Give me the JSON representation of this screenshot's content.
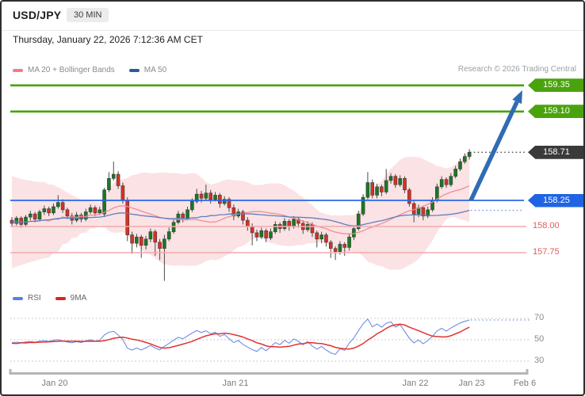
{
  "header": {
    "symbol": "USD/JPY",
    "timeframe": "30 MIN"
  },
  "datetime": "Thursday, January 22, 2026 7:12:36 AM CET",
  "copyright": "Research © 2026 Trading Central",
  "legend_main": [
    {
      "label": "MA 20 + Bollinger Bands",
      "color": "#f47b83"
    },
    {
      "label": "MA 50",
      "color": "#2b5aa0"
    }
  ],
  "legend_rsi": [
    {
      "label": "RSI",
      "color": "#5b7fe0"
    },
    {
      "label": "9MA",
      "color": "#e02020"
    }
  ],
  "chart_data": {
    "type": "candlestick",
    "title": "USD/JPY 30 MIN",
    "price_range_visible": [
      157.45,
      159.45
    ],
    "x_ticks": [
      "Jan 20",
      "Jan 21",
      "Jan 22",
      "Jan 23",
      "Feb 6"
    ],
    "rsi_ticks": [
      70,
      50,
      30
    ],
    "indicators": {
      "overlays": [
        "MA 20 + Bollinger Bands",
        "MA 50"
      ],
      "oscillators": [
        "RSI",
        "9MA"
      ]
    },
    "price_levels": [
      {
        "label": "159.35",
        "price": 159.35,
        "kind": "resistance",
        "style": "green-tag"
      },
      {
        "label": "159.10",
        "price": 159.1,
        "kind": "resistance",
        "style": "green-tag"
      },
      {
        "label": "158.71",
        "price": 158.71,
        "kind": "last-price",
        "style": "dark-tag"
      },
      {
        "label": "158.25",
        "price": 158.25,
        "kind": "pivot",
        "style": "blue-tag"
      },
      {
        "label": "158.00",
        "price": 158.0,
        "kind": "support",
        "style": "red-text"
      },
      {
        "label": "157.75",
        "price": 157.75,
        "kind": "support",
        "style": "red-text"
      }
    ],
    "forecast_arrow": {
      "direction": "up",
      "from_price": 158.71,
      "to_price": 159.35
    },
    "warmup_closes": [
      158.3,
      157.75,
      158.35,
      157.7,
      158.3,
      157.8,
      158.25,
      157.85,
      158.2,
      157.9,
      158.15,
      157.95
    ],
    "candles": [
      [
        158.06,
        158.09,
        158.0,
        158.03
      ],
      [
        158.03,
        158.1,
        158.01,
        158.08
      ],
      [
        158.08,
        158.1,
        157.99,
        158.02
      ],
      [
        158.02,
        158.11,
        158.0,
        158.09
      ],
      [
        158.09,
        158.15,
        158.06,
        158.12
      ],
      [
        158.12,
        158.14,
        158.04,
        158.07
      ],
      [
        158.07,
        158.16,
        158.05,
        158.14
      ],
      [
        158.14,
        158.2,
        158.11,
        158.17
      ],
      [
        158.17,
        158.19,
        158.1,
        158.13
      ],
      [
        158.13,
        158.22,
        158.11,
        158.19
      ],
      [
        158.19,
        158.3,
        158.17,
        158.23
      ],
      [
        158.23,
        158.26,
        158.13,
        158.16
      ],
      [
        158.16,
        158.18,
        158.07,
        158.1
      ],
      [
        158.1,
        158.13,
        158.02,
        158.06
      ],
      [
        158.06,
        158.14,
        158.04,
        158.11
      ],
      [
        158.11,
        158.13,
        158.04,
        158.07
      ],
      [
        158.07,
        158.17,
        158.05,
        158.14
      ],
      [
        158.14,
        158.21,
        158.12,
        158.18
      ],
      [
        158.18,
        158.2,
        158.1,
        158.13
      ],
      [
        158.13,
        158.19,
        158.11,
        158.16
      ],
      [
        158.12,
        158.37,
        158.09,
        158.35
      ],
      [
        158.35,
        158.52,
        158.33,
        158.46
      ],
      [
        158.46,
        158.62,
        158.44,
        158.5
      ],
      [
        158.5,
        158.53,
        158.36,
        158.39
      ],
      [
        158.39,
        158.42,
        158.22,
        158.25
      ],
      [
        158.25,
        158.28,
        157.86,
        157.92
      ],
      [
        157.92,
        157.95,
        157.74,
        157.84
      ],
      [
        157.84,
        157.93,
        157.8,
        157.9
      ],
      [
        157.9,
        157.92,
        157.7,
        157.82
      ],
      [
        157.82,
        157.91,
        157.78,
        157.88
      ],
      [
        157.88,
        157.98,
        157.85,
        157.95
      ],
      [
        157.95,
        157.97,
        157.72,
        157.85
      ],
      [
        157.85,
        157.88,
        157.68,
        157.79
      ],
      [
        157.79,
        157.92,
        157.48,
        157.88
      ],
      [
        157.88,
        157.99,
        157.86,
        157.95
      ],
      [
        157.95,
        158.07,
        157.93,
        158.04
      ],
      [
        158.04,
        158.15,
        158.02,
        158.12
      ],
      [
        158.12,
        158.14,
        158.04,
        158.08
      ],
      [
        158.08,
        158.19,
        158.06,
        158.16
      ],
      [
        158.16,
        158.27,
        158.14,
        158.24
      ],
      [
        158.24,
        158.36,
        158.22,
        158.31
      ],
      [
        158.31,
        158.34,
        158.23,
        158.27
      ],
      [
        158.27,
        158.4,
        158.25,
        158.32
      ],
      [
        158.32,
        158.35,
        158.22,
        158.26
      ],
      [
        158.26,
        158.33,
        158.24,
        158.3
      ],
      [
        158.3,
        158.32,
        158.18,
        158.22
      ],
      [
        158.22,
        158.29,
        158.2,
        158.26
      ],
      [
        158.26,
        158.28,
        158.14,
        158.18
      ],
      [
        158.18,
        158.21,
        158.06,
        158.1
      ],
      [
        158.1,
        158.17,
        158.08,
        158.14
      ],
      [
        158.14,
        158.16,
        158.02,
        158.06
      ],
      [
        158.06,
        158.09,
        157.96,
        158.0
      ],
      [
        158.0,
        158.03,
        157.82,
        157.94
      ],
      [
        157.94,
        157.97,
        157.86,
        157.9
      ],
      [
        157.9,
        157.99,
        157.88,
        157.96
      ],
      [
        157.96,
        157.98,
        157.85,
        157.89
      ],
      [
        157.89,
        157.98,
        157.87,
        157.95
      ],
      [
        157.95,
        158.05,
        157.93,
        158.02
      ],
      [
        158.02,
        158.04,
        157.94,
        157.98
      ],
      [
        157.98,
        158.08,
        157.96,
        158.05
      ],
      [
        158.05,
        158.07,
        157.96,
        158.0
      ],
      [
        158.0,
        158.1,
        157.98,
        158.07
      ],
      [
        158.07,
        158.09,
        157.99,
        158.03
      ],
      [
        158.03,
        158.06,
        157.93,
        157.97
      ],
      [
        157.97,
        158.05,
        157.95,
        158.02
      ],
      [
        158.02,
        158.04,
        157.9,
        157.94
      ],
      [
        157.94,
        157.96,
        157.8,
        157.88
      ],
      [
        157.88,
        157.95,
        157.84,
        157.92
      ],
      [
        157.92,
        157.94,
        157.81,
        157.85
      ],
      [
        157.85,
        157.87,
        157.7,
        157.79
      ],
      [
        157.79,
        157.81,
        157.68,
        157.76
      ],
      [
        157.76,
        157.86,
        157.73,
        157.83
      ],
      [
        157.83,
        157.85,
        157.72,
        157.8
      ],
      [
        157.8,
        157.93,
        157.77,
        157.9
      ],
      [
        157.9,
        158.01,
        157.87,
        157.98
      ],
      [
        157.98,
        158.15,
        157.96,
        158.12
      ],
      [
        158.12,
        158.31,
        158.1,
        158.28
      ],
      [
        158.28,
        158.52,
        158.26,
        158.42
      ],
      [
        158.42,
        158.45,
        158.27,
        158.3
      ],
      [
        158.3,
        158.41,
        158.27,
        158.38
      ],
      [
        158.38,
        158.4,
        158.29,
        158.33
      ],
      [
        158.33,
        158.55,
        158.31,
        158.44
      ],
      [
        158.44,
        158.51,
        158.41,
        158.48
      ],
      [
        158.48,
        158.5,
        158.37,
        158.4
      ],
      [
        158.4,
        158.49,
        158.38,
        158.46
      ],
      [
        158.46,
        158.48,
        158.32,
        158.35
      ],
      [
        158.35,
        158.37,
        158.19,
        158.22
      ],
      [
        158.22,
        158.25,
        158.04,
        158.12
      ],
      [
        158.12,
        158.21,
        158.09,
        158.18
      ],
      [
        158.18,
        158.2,
        158.06,
        158.1
      ],
      [
        158.1,
        158.19,
        158.08,
        158.16
      ],
      [
        158.16,
        158.28,
        158.14,
        158.25
      ],
      [
        158.25,
        158.41,
        158.23,
        158.38
      ],
      [
        158.38,
        158.48,
        158.36,
        158.45
      ],
      [
        158.45,
        158.47,
        158.37,
        158.4
      ],
      [
        158.4,
        158.51,
        158.38,
        158.48
      ],
      [
        158.48,
        158.58,
        158.46,
        158.55
      ],
      [
        158.55,
        158.65,
        158.53,
        158.62
      ],
      [
        158.62,
        158.7,
        158.6,
        158.67
      ],
      [
        158.67,
        158.74,
        158.64,
        158.71
      ]
    ]
  },
  "colors": {
    "resistance_green": "#44a30a",
    "pivot_blue": "#2966e8",
    "last_dark": "#3c3c3c",
    "support_pink": "#f3a9ad",
    "support_text": "#e25d5d",
    "candle_up": "#177a21",
    "candle_down": "#d93025",
    "wick": "#4a4a4a",
    "ma20": "#ef8e96",
    "ma50": "#5c7fc0",
    "bollinger_fill": "#f4a6ac",
    "rsi_line": "#6f8fe3",
    "rsi_ma_line": "#e03232",
    "arrow_blue": "#2f6cb3",
    "grid_dotted": "#c9c9c9",
    "axis_bar": "#b5b5b5"
  }
}
